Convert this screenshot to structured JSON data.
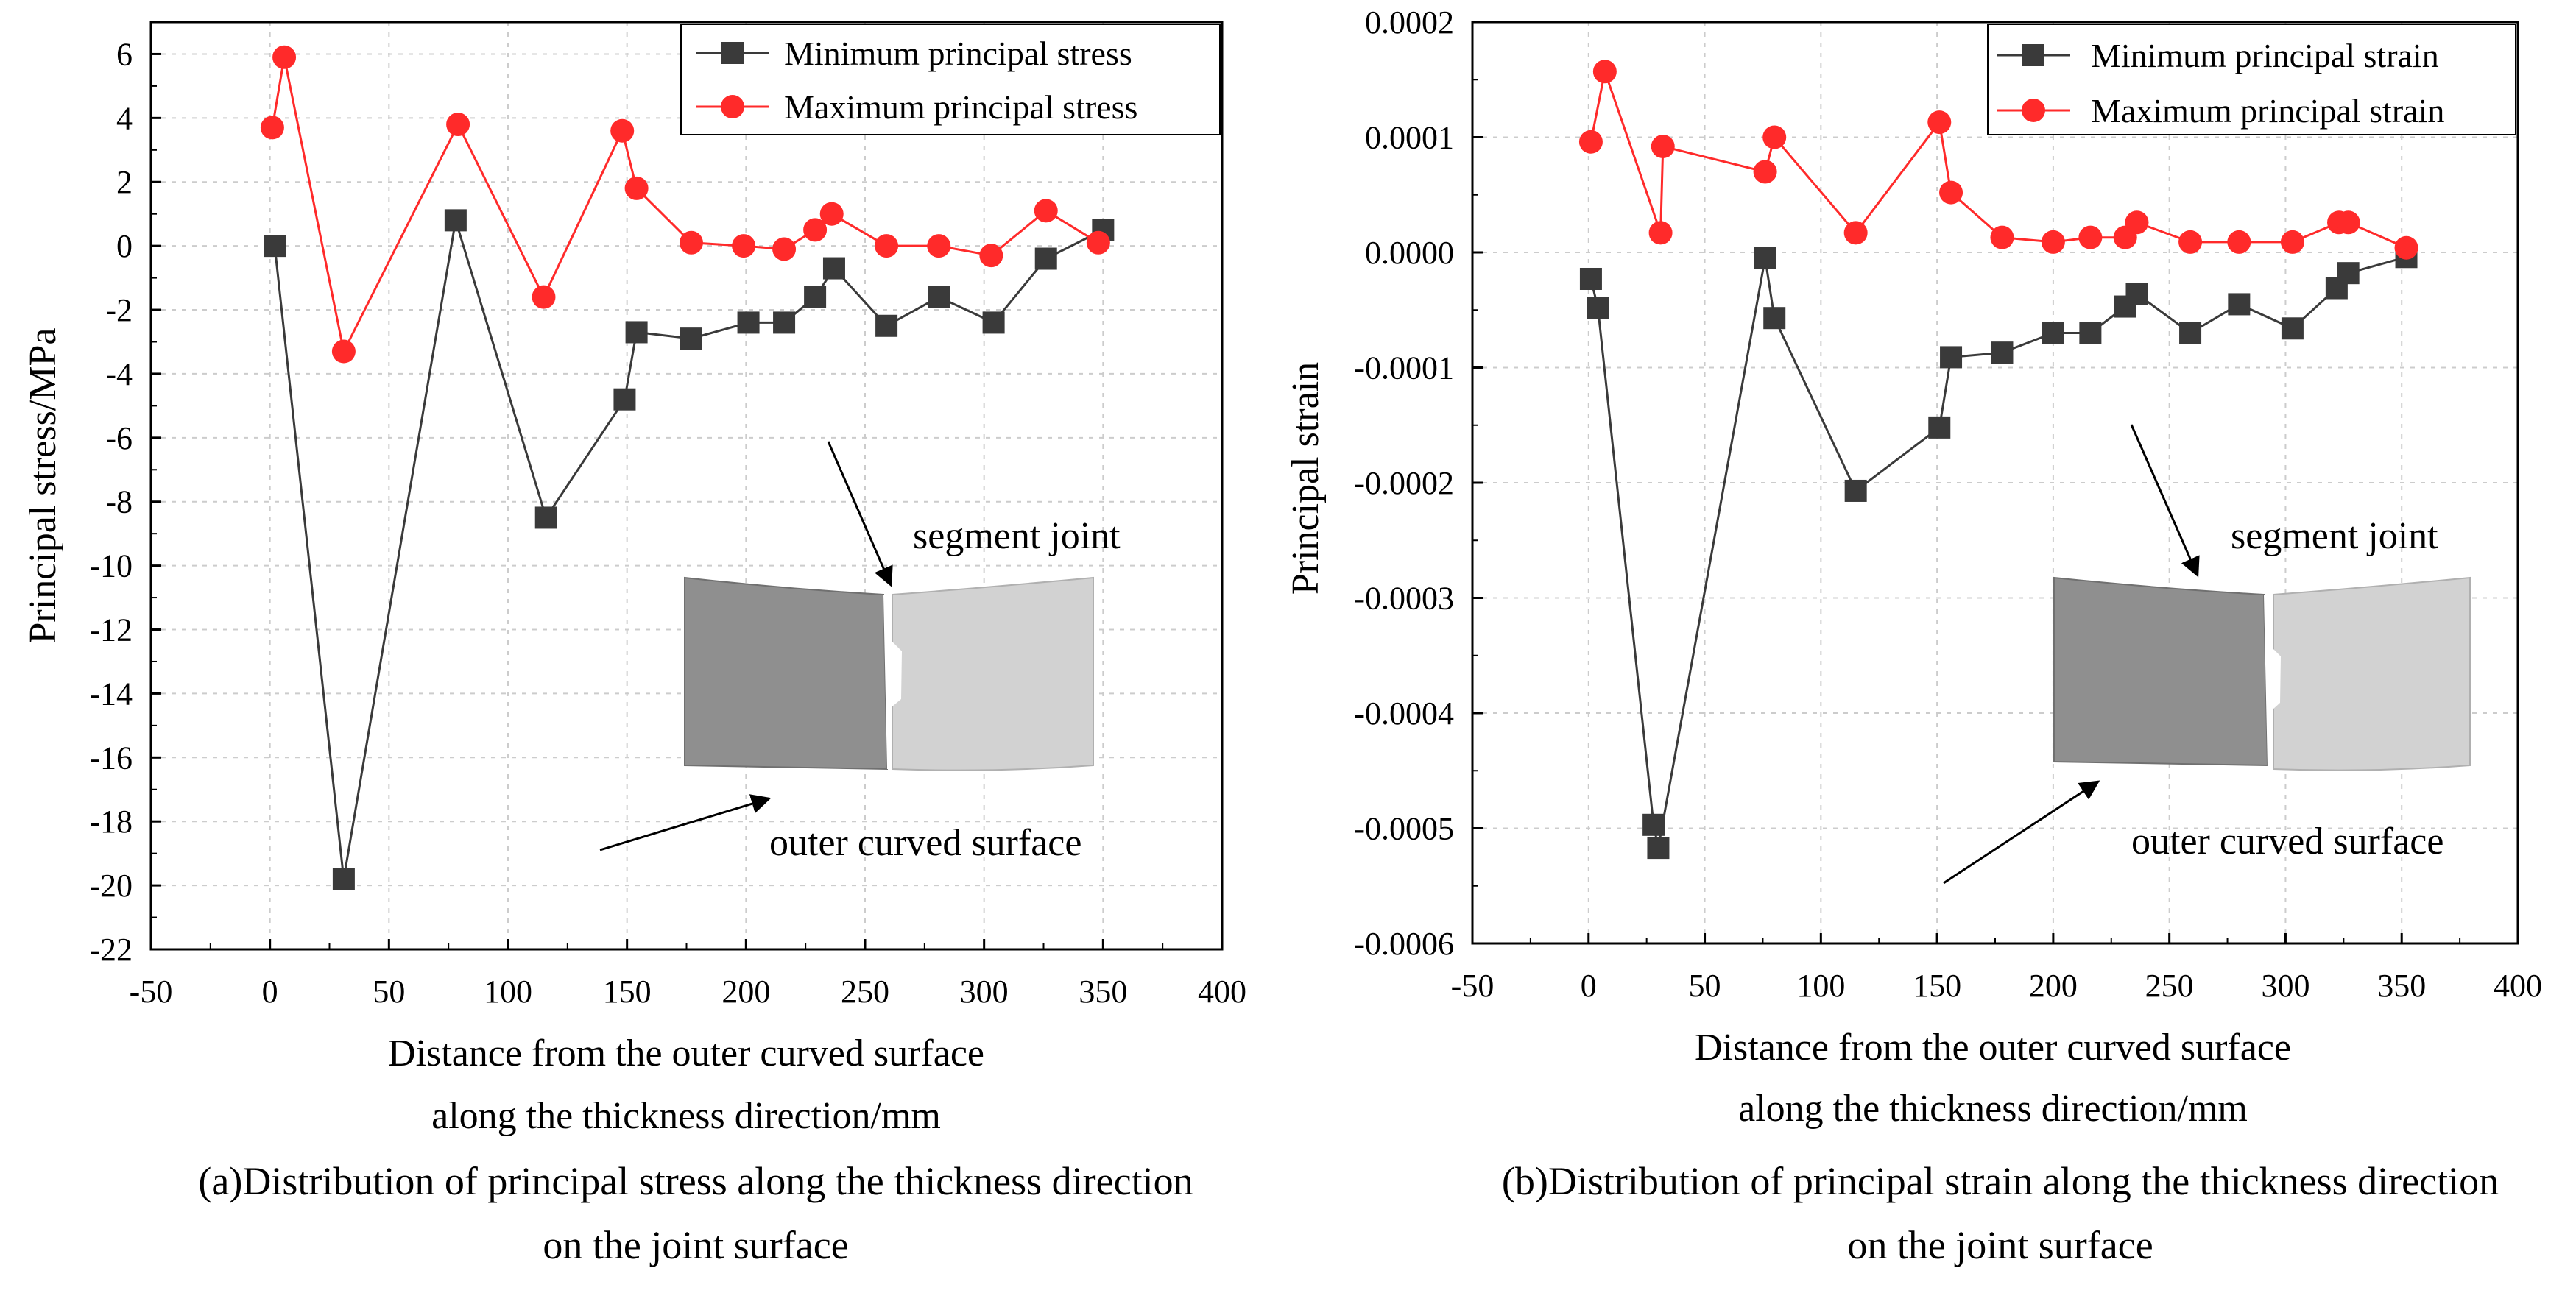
{
  "colors": {
    "min_series": "#3a3a3a",
    "max_series": "#ff2a2a",
    "grid": "#cccccc"
  },
  "chart_data": [
    {
      "type": "line",
      "xlabel_line1": "Distance from the outer curved surface",
      "xlabel_line2": "along the thickness direction/mm",
      "ylabel": "Principal stress/MPa",
      "xlim": [
        -50,
        400
      ],
      "ylim": [
        -22,
        7
      ],
      "xticks": [
        "-50",
        "0",
        "50",
        "100",
        "150",
        "200",
        "250",
        "300",
        "350",
        "400"
      ],
      "yticks": [
        "6",
        "4",
        "2",
        "0",
        "-2",
        "-4",
        "-6",
        "-8",
        "-10",
        "-12",
        "-14",
        "-16",
        "-18",
        "-20",
        "-22"
      ],
      "legend_position": "top-right",
      "series": [
        {
          "name": "Minimum principal stress",
          "marker": "square",
          "x": [
            2,
            31,
            78,
            116,
            149,
            154,
            177,
            201,
            216,
            229,
            237,
            259,
            281,
            304,
            326,
            350
          ],
          "y": [
            0.0,
            -19.8,
            0.8,
            -8.5,
            -4.8,
            -2.7,
            -2.9,
            -2.4,
            -2.4,
            -1.6,
            -0.7,
            -2.5,
            -1.6,
            -2.4,
            -0.4,
            0.5
          ]
        },
        {
          "name": "Maximum principal stress",
          "marker": "circle",
          "x": [
            1,
            6,
            31,
            79,
            115,
            148,
            154,
            177,
            199,
            216,
            229,
            236,
            259,
            281,
            303,
            326,
            348
          ],
          "y": [
            3.7,
            5.9,
            -3.3,
            3.8,
            -1.6,
            3.6,
            1.8,
            0.1,
            0.0,
            -0.1,
            0.5,
            1.0,
            0.0,
            0.0,
            -0.3,
            1.1,
            0.1
          ]
        }
      ],
      "annotations": {
        "joint_label": "segment joint",
        "surface_label": "outer curved surface"
      },
      "caption_line1": "(a)Distribution of principal stress along the thickness direction",
      "caption_line2": "on the joint surface"
    },
    {
      "type": "line",
      "xlabel_line1": "Distance from the outer curved surface",
      "xlabel_line2": "along the thickness direction/mm",
      "ylabel": "Principal strain",
      "xlim": [
        -50,
        400
      ],
      "ylim": [
        -0.0006,
        0.0002
      ],
      "xticks": [
        "-50",
        "0",
        "50",
        "100",
        "150",
        "200",
        "250",
        "300",
        "350",
        "400"
      ],
      "yticks": [
        "0.0002",
        "0.0001",
        "0.0000",
        "-0.0001",
        "-0.0002",
        "-0.0003",
        "-0.0004",
        "-0.0005",
        "-0.0006"
      ],
      "legend_position": "top-right",
      "series": [
        {
          "name": "Minimum principal strain",
          "marker": "square",
          "x": [
            1,
            4,
            28,
            30,
            76,
            80,
            115,
            151,
            156,
            178,
            200,
            216,
            231,
            236,
            259,
            280,
            303,
            322,
            327,
            352
          ],
          "y": [
            -2.3e-05,
            -4.8e-05,
            -0.000497,
            -0.000517,
            -5e-06,
            -5.7e-05,
            -0.000207,
            -0.000152,
            -9.1e-05,
            -8.7e-05,
            -7e-05,
            -7e-05,
            -4.7e-05,
            -3.6e-05,
            -7e-05,
            -4.5e-05,
            -6.6e-05,
            -3.1e-05,
            -1.8e-05,
            -4e-06
          ]
        },
        {
          "name": "Maximum principal strain",
          "marker": "circle",
          "x": [
            1,
            7,
            31,
            32,
            76,
            80,
            115,
            151,
            156,
            178,
            200,
            216,
            231,
            236,
            259,
            280,
            303,
            323,
            327,
            352
          ],
          "y": [
            9.6e-05,
            0.000157,
            1.7e-05,
            9.2e-05,
            7e-05,
            0.0001,
            1.7e-05,
            0.000113,
            5.2e-05,
            1.3e-05,
            9e-06,
            1.3e-05,
            1.3e-05,
            2.6e-05,
            9e-06,
            9e-06,
            9e-06,
            2.6e-05,
            2.6e-05,
            4e-06
          ]
        }
      ],
      "annotations": {
        "joint_label": "segment joint",
        "surface_label": "outer curved surface"
      },
      "caption_line1": "(b)Distribution of principal strain along the thickness direction",
      "caption_line2": "on the joint surface"
    }
  ]
}
